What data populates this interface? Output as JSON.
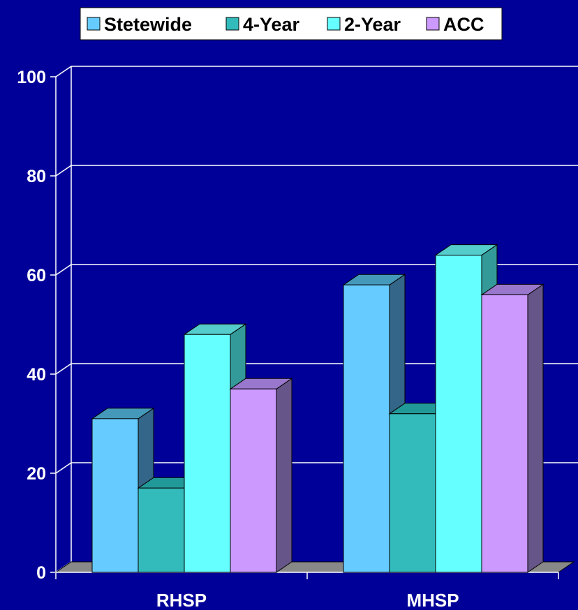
{
  "chart_data": {
    "type": "bar",
    "title": "",
    "xlabel": "",
    "ylabel": "",
    "categories": [
      "RHSP",
      "MHSP"
    ],
    "series": [
      {
        "name": "Stetewide",
        "values": [
          31,
          58
        ],
        "color": "#66ccff",
        "side": "#336688",
        "top": "#4499bb"
      },
      {
        "name": "4-Year",
        "values": [
          17,
          32
        ],
        "color": "#33bbbb",
        "side": "#228888",
        "top": "#229999"
      },
      {
        "name": "2-Year",
        "values": [
          48,
          64
        ],
        "color": "#66ffff",
        "side": "#339999",
        "top": "#55cccc"
      },
      {
        "name": "ACC",
        "values": [
          37,
          56
        ],
        "color": "#cc99ff",
        "side": "#665588",
        "top": "#9977cc"
      }
    ],
    "ylim": [
      0,
      100
    ],
    "yticks": [
      0,
      20,
      40,
      60,
      80,
      100
    ],
    "grid": true,
    "three_d": true,
    "legend_position": "top"
  },
  "colors": {
    "background": "#000099",
    "axis": "#ffffff",
    "floor": "#888888"
  }
}
